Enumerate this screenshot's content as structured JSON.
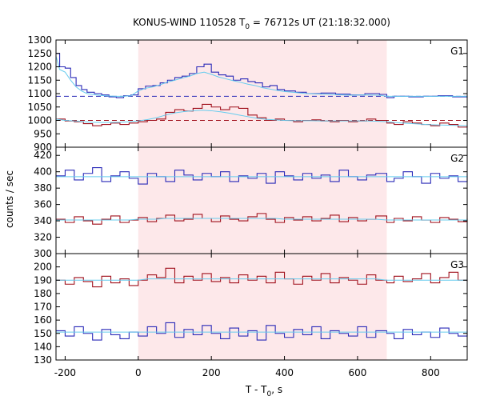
{
  "chart_data": {
    "type": "line",
    "title_main": "KONUS-WIND 110528 T",
    "title_sub": "0",
    "title_rest": " = 76712s UT (21:18:32.000)",
    "xlabel_main": "T - T",
    "xlabel_sub": "0",
    "xlabel_rest": ", s",
    "ylabel": "counts / sec",
    "xlim": [
      -225,
      900
    ],
    "x_ticks": [
      -200,
      0,
      200,
      400,
      600,
      800
    ],
    "highlight_interval": [
      0,
      680
    ],
    "highlight_color": "#fde8ea",
    "colors": {
      "blue": "#2a2ab8",
      "red": "#a0101c",
      "fit": "#66ccee",
      "frame": "#000000"
    },
    "panels": [
      {
        "name": "G1",
        "ylim": [
          900,
          1300
        ],
        "y_ticks": [
          900,
          950,
          1000,
          1050,
          1100,
          1150,
          1200,
          1250,
          1300
        ],
        "background_levels": [
          {
            "color": "blue",
            "value": 1090
          },
          {
            "color": "red",
            "value": 1000
          }
        ],
        "series": [
          {
            "color": "blue",
            "x": [
              -225,
              -215,
              -200,
              -185,
              -170,
              -155,
              -140,
              -120,
              -100,
              -80,
              -60,
              -40,
              -20,
              0,
              20,
              40,
              60,
              80,
              100,
              120,
              140,
              160,
              180,
              200,
              220,
              240,
              260,
              280,
              300,
              320,
              340,
              360,
              380,
              400,
              430,
              460,
              500,
              540,
              580,
              620,
              660,
              680,
              700,
              740,
              780,
              820,
              860,
              900
            ],
            "y": [
              1250,
              1200,
              1195,
              1160,
              1130,
              1115,
              1105,
              1100,
              1095,
              1088,
              1085,
              1092,
              1095,
              1118,
              1128,
              1130,
              1140,
              1150,
              1160,
              1165,
              1175,
              1200,
              1210,
              1180,
              1170,
              1165,
              1150,
              1155,
              1145,
              1140,
              1125,
              1130,
              1115,
              1110,
              1105,
              1100,
              1102,
              1098,
              1095,
              1100,
              1097,
              1085,
              1090,
              1088,
              1090,
              1092,
              1088,
              1090
            ],
            "fit": [
              1240,
              1190,
              1180,
              1150,
              1125,
              1110,
              1100,
              1096,
              1093,
              1091,
              1090,
              1090,
              1092,
              1110,
              1120,
              1125,
              1133,
              1143,
              1150,
              1158,
              1165,
              1175,
              1180,
              1172,
              1162,
              1155,
              1148,
              1142,
              1135,
              1130,
              1122,
              1117,
              1112,
              1108,
              1104,
              1100,
              1098,
              1096,
              1094,
              1095,
              1094,
              1090,
              1090,
              1090,
              1090,
              1090,
              1090,
              1090
            ]
          },
          {
            "color": "red",
            "x": [
              -225,
              -200,
              -175,
              -150,
              -125,
              -100,
              -75,
              -50,
              -25,
              0,
              25,
              50,
              75,
              100,
              125,
              150,
              175,
              200,
              225,
              250,
              275,
              300,
              325,
              350,
              375,
              400,
              425,
              450,
              475,
              500,
              525,
              550,
              575,
              600,
              625,
              650,
              680,
              700,
              725,
              750,
              775,
              800,
              825,
              850,
              875,
              900
            ],
            "y": [
              1005,
              998,
              995,
              988,
              980,
              985,
              990,
              985,
              990,
              995,
              1000,
              1005,
              1030,
              1040,
              1035,
              1045,
              1060,
              1050,
              1040,
              1050,
              1045,
              1020,
              1010,
              1000,
              1005,
              1000,
              995,
              1000,
              1002,
              998,
              995,
              1000,
              995,
              998,
              1005,
              1000,
              990,
              985,
              995,
              990,
              985,
              980,
              990,
              985,
              975,
              980
            ],
            "fit": [
              1005,
              1000,
              998,
              995,
              993,
              992,
              992,
              993,
              995,
              998,
              1003,
              1010,
              1020,
              1028,
              1033,
              1036,
              1038,
              1036,
              1032,
              1027,
              1020,
              1014,
              1008,
              1004,
              1002,
              1000,
              999,
              999,
              999,
              998,
              998,
              998,
              998,
              998,
              998,
              997,
              995,
              992,
              990,
              988,
              986,
              984,
              983,
              982,
              981,
              980
            ]
          }
        ]
      },
      {
        "name": "G2",
        "ylim": [
          300,
          430
        ],
        "y_ticks": [
          300,
          320,
          340,
          360,
          380,
          400,
          420
        ],
        "background_levels": [],
        "series": [
          {
            "color": "blue",
            "x": [
              -225,
              -200,
              -175,
              -150,
              -125,
              -100,
              -75,
              -50,
              -25,
              0,
              25,
              50,
              75,
              100,
              125,
              150,
              175,
              200,
              225,
              250,
              275,
              300,
              325,
              350,
              375,
              400,
              425,
              450,
              475,
              500,
              525,
              550,
              575,
              600,
              625,
              650,
              680,
              700,
              725,
              750,
              775,
              800,
              825,
              850,
              875,
              900
            ],
            "y": [
              395,
              402,
              390,
              398,
              405,
              388,
              395,
              400,
              392,
              385,
              398,
              394,
              388,
              402,
              396,
              390,
              398,
              394,
              400,
              388,
              395,
              392,
              398,
              386,
              400,
              395,
              390,
              398,
              392,
              396,
              388,
              402,
              394,
              390,
              396,
              398,
              388,
              392,
              400,
              394,
              386,
              398,
              392,
              395,
              388,
              398
            ],
            "fit": [
              394,
              394,
              394,
              394,
              394,
              394,
              394,
              394,
              394,
              394,
              394,
              394,
              394,
              394,
              394,
              394,
              394,
              394,
              394,
              394,
              394,
              394,
              394,
              394,
              394,
              394,
              394,
              394,
              394,
              394,
              394,
              394,
              394,
              394,
              394,
              394,
              394,
              394,
              394,
              394,
              394,
              394,
              394,
              394,
              394,
              394
            ]
          },
          {
            "color": "red",
            "x": [
              -225,
              -200,
              -175,
              -150,
              -125,
              -100,
              -75,
              -50,
              -25,
              0,
              25,
              50,
              75,
              100,
              125,
              150,
              175,
              200,
              225,
              250,
              275,
              300,
              325,
              350,
              375,
              400,
              425,
              450,
              475,
              500,
              525,
              550,
              575,
              600,
              625,
              650,
              680,
              700,
              725,
              750,
              775,
              800,
              825,
              850,
              875,
              900
            ],
            "y": [
              342,
              338,
              345,
              340,
              336,
              342,
              346,
              338,
              341,
              344,
              339,
              343,
              347,
              340,
              342,
              348,
              343,
              339,
              346,
              342,
              340,
              345,
              349,
              342,
              338,
              344,
              341,
              345,
              340,
              343,
              347,
              339,
              344,
              340,
              342,
              346,
              338,
              343,
              340,
              345,
              341,
              338,
              344,
              342,
              339,
              343
            ],
            "fit": [
              341,
              341,
              341,
              341,
              341,
              341,
              341,
              341,
              341,
              342,
              342,
              342,
              343,
              343,
              343,
              343,
              343,
              343,
              343,
              343,
              343,
              343,
              343,
              343,
              343,
              342,
              342,
              342,
              342,
              342,
              342,
              342,
              342,
              342,
              342,
              342,
              341,
              341,
              341,
              341,
              341,
              341,
              341,
              341,
              341,
              341
            ]
          }
        ]
      },
      {
        "name": "G3",
        "ylim": [
          130,
          210
        ],
        "y_ticks": [
          130,
          140,
          150,
          160,
          170,
          180,
          190,
          200
        ],
        "background_levels": [],
        "series": [
          {
            "color": "red",
            "x": [
              -225,
              -200,
              -175,
              -150,
              -125,
              -100,
              -75,
              -50,
              -25,
              0,
              25,
              50,
              75,
              100,
              125,
              150,
              175,
              200,
              225,
              250,
              275,
              300,
              325,
              350,
              375,
              400,
              425,
              450,
              475,
              500,
              525,
              550,
              575,
              600,
              625,
              650,
              680,
              700,
              725,
              750,
              775,
              800,
              825,
              850,
              875,
              900
            ],
            "y": [
              190,
              187,
              192,
              189,
              185,
              193,
              188,
              191,
              186,
              190,
              194,
              192,
              199,
              188,
              193,
              190,
              195,
              189,
              192,
              188,
              194,
              190,
              193,
              188,
              196,
              191,
              187,
              193,
              190,
              195,
              188,
              192,
              190,
              187,
              194,
              190,
              188,
              193,
              189,
              191,
              195,
              188,
              192,
              196,
              190,
              189
            ],
            "fit": [
              190,
              190,
              190,
              190,
              190,
              190,
              190,
              190,
              190,
              190,
              191,
              191,
              191,
              191,
              191,
              191,
              191,
              191,
              191,
              191,
              191,
              191,
              191,
              191,
              191,
              191,
              191,
              191,
              191,
              191,
              191,
              191,
              191,
              191,
              191,
              191,
              190,
              190,
              190,
              190,
              190,
              190,
              190,
              190,
              190,
              190
            ]
          },
          {
            "color": "blue",
            "x": [
              -225,
              -200,
              -175,
              -150,
              -125,
              -100,
              -75,
              -50,
              -25,
              0,
              25,
              50,
              75,
              100,
              125,
              150,
              175,
              200,
              225,
              250,
              275,
              300,
              325,
              350,
              375,
              400,
              425,
              450,
              475,
              500,
              525,
              550,
              575,
              600,
              625,
              650,
              680,
              700,
              725,
              750,
              775,
              800,
              825,
              850,
              875,
              900
            ],
            "y": [
              152,
              148,
              155,
              150,
              145,
              153,
              149,
              146,
              151,
              148,
              155,
              150,
              158,
              147,
              153,
              149,
              156,
              150,
              146,
              154,
              148,
              152,
              145,
              156,
              150,
              147,
              153,
              149,
              155,
              146,
              152,
              150,
              148,
              155,
              147,
              152,
              150,
              146,
              153,
              149,
              151,
              147,
              154,
              150,
              148,
              152
            ],
            "fit": [
              151,
              151,
              151,
              151,
              151,
              151,
              151,
              151,
              151,
              151,
              151,
              151,
              151,
              151,
              151,
              151,
              151,
              151,
              151,
              151,
              151,
              151,
              151,
              151,
              151,
              151,
              151,
              151,
              151,
              151,
              151,
              151,
              151,
              151,
              151,
              151,
              151,
              151,
              151,
              151,
              151,
              151,
              151,
              151,
              151,
              151
            ]
          }
        ]
      }
    ]
  }
}
